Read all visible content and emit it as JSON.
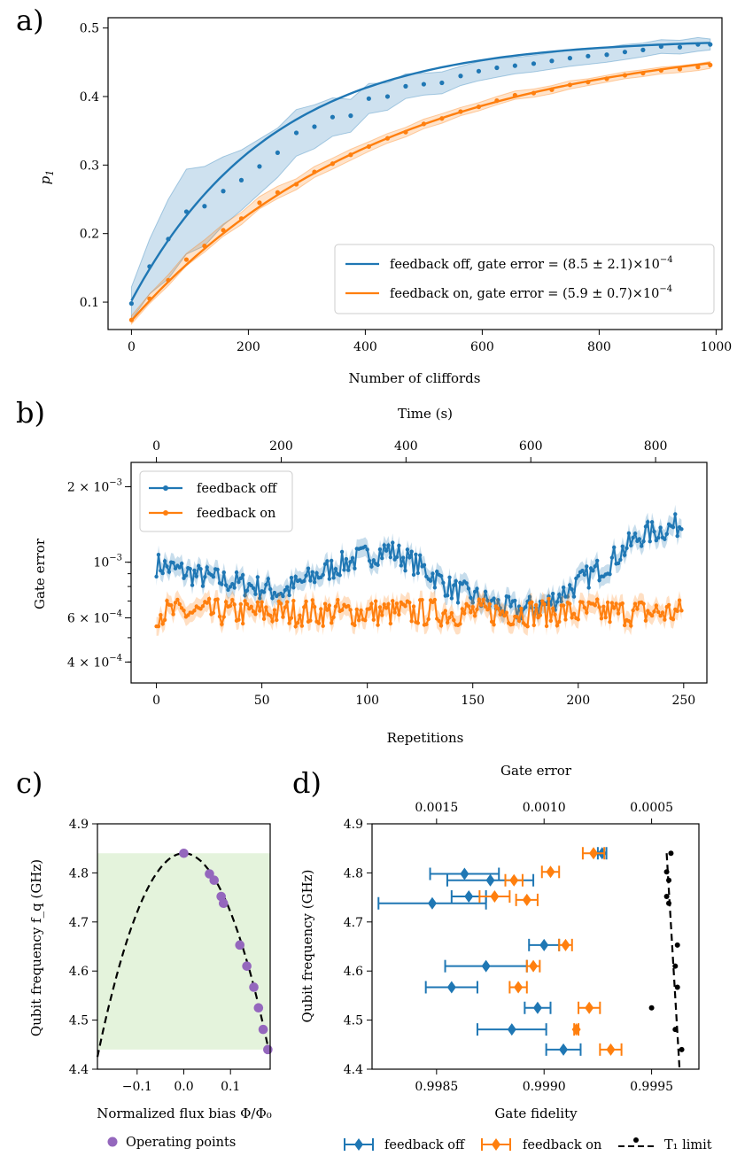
{
  "colors": {
    "blue": "#1f77b4",
    "orange": "#ff7f0e",
    "green_band": "#e4f3dc",
    "purple": "#9467bd",
    "black": "#000000"
  },
  "chart_data": [
    {
      "id": "a",
      "panel_label": "a)",
      "type": "line",
      "xlabel": "Number of cliffords",
      "ylabel": "p_1",
      "xlim": [
        -40,
        1010
      ],
      "ylim": [
        0.06,
        0.515
      ],
      "xticks": [
        0,
        200,
        400,
        600,
        800,
        1000
      ],
      "yticks": [
        0.1,
        0.2,
        0.3,
        0.4,
        0.5
      ],
      "legend_position": "lower-right",
      "series": [
        {
          "name": "feedback off, gate error = (8.5 ± 2.1)×10^{-4}",
          "legend_label": "feedback off, gate error = (8.5 ± 2.1)×10",
          "legend_exp": "−4",
          "color": "blue",
          "x": [
            0,
            31,
            63,
            94,
            125,
            157,
            188,
            219,
            250,
            282,
            313,
            344,
            375,
            406,
            438,
            469,
            500,
            531,
            563,
            594,
            625,
            656,
            688,
            719,
            750,
            781,
            813,
            844,
            875,
            906,
            938,
            969,
            990
          ],
          "y": [
            0.098,
            0.152,
            0.192,
            0.232,
            0.24,
            0.262,
            0.278,
            0.298,
            0.318,
            0.347,
            0.356,
            0.37,
            0.372,
            0.397,
            0.4,
            0.415,
            0.418,
            0.42,
            0.43,
            0.437,
            0.442,
            0.445,
            0.448,
            0.452,
            0.456,
            0.459,
            0.461,
            0.465,
            0.468,
            0.473,
            0.472,
            0.476,
            0.476
          ],
          "fit": {
            "p0": 0.102,
            "pinf": 0.4845,
            "decay": 0.99584
          },
          "band": [
            0.024,
            0.04,
            0.058,
            0.062,
            0.058,
            0.05,
            0.044,
            0.04,
            0.036,
            0.034,
            0.032,
            0.028,
            0.024,
            0.022,
            0.02,
            0.018,
            0.016,
            0.016,
            0.014,
            0.014,
            0.014,
            0.012,
            0.012,
            0.012,
            0.012,
            0.012,
            0.011,
            0.011,
            0.01,
            0.01,
            0.01,
            0.01,
            0.008
          ]
        },
        {
          "name": "feedback on, gate error = (5.9 ± 0.7)×10^{-4}",
          "legend_label": "feedback on, gate error = (5.9 ± 0.7)×10",
          "legend_exp": "−4",
          "color": "orange",
          "x": [
            0,
            31,
            63,
            94,
            125,
            157,
            188,
            219,
            250,
            282,
            313,
            344,
            375,
            406,
            438,
            469,
            500,
            531,
            563,
            594,
            625,
            656,
            688,
            719,
            750,
            781,
            813,
            844,
            875,
            906,
            938,
            969,
            990
          ],
          "y": [
            0.074,
            0.105,
            0.132,
            0.162,
            0.182,
            0.205,
            0.222,
            0.245,
            0.26,
            0.272,
            0.29,
            0.302,
            0.315,
            0.327,
            0.339,
            0.348,
            0.36,
            0.368,
            0.378,
            0.385,
            0.394,
            0.402,
            0.405,
            0.41,
            0.417,
            0.421,
            0.426,
            0.431,
            0.434,
            0.438,
            0.44,
            0.443,
            0.446
          ],
          "fit": {
            "p0": 0.073,
            "pinf": 0.491,
            "decay": 0.99769
          },
          "band": [
            0.006,
            0.007,
            0.008,
            0.009,
            0.009,
            0.009,
            0.009,
            0.009,
            0.009,
            0.008,
            0.008,
            0.008,
            0.008,
            0.007,
            0.007,
            0.007,
            0.007,
            0.007,
            0.006,
            0.006,
            0.006,
            0.006,
            0.006,
            0.006,
            0.006,
            0.005,
            0.005,
            0.005,
            0.005,
            0.005,
            0.005,
            0.005,
            0.005
          ]
        }
      ]
    },
    {
      "id": "b",
      "panel_label": "b)",
      "type": "line",
      "xlabel": "Repetitions",
      "ylabel": "Gate error",
      "top_xlabel": "Time (s)",
      "xlim": [
        -12,
        261
      ],
      "yscale": "log",
      "ylim": [
        0.00033,
        0.0025
      ],
      "xticks": [
        0,
        50,
        100,
        150,
        200,
        250
      ],
      "top_xticks": [
        0,
        200,
        400,
        600,
        800
      ],
      "time_per_repetition_s": 3.38,
      "yticks_labeled": [
        {
          "value": 0.0004,
          "m": "4",
          "e": "−4"
        },
        {
          "value": 0.0006,
          "m": "6",
          "e": "−4"
        },
        {
          "value": 0.001,
          "m": "",
          "e": "−3"
        },
        {
          "value": 0.002,
          "m": "2",
          "e": "−3"
        }
      ],
      "legend_position": "upper-left",
      "series": [
        {
          "name": "feedback off",
          "color": "blue",
          "points": 250,
          "trend_x": [
            0,
            20,
            40,
            60,
            75,
            90,
            110,
            125,
            140,
            160,
            170,
            185,
            200,
            215,
            230,
            250
          ],
          "trend_y": [
            0.00098,
            0.00088,
            0.00082,
            0.00076,
            0.00088,
            0.001,
            0.00112,
            0.00096,
            0.00078,
            0.00068,
            0.00064,
            0.00068,
            0.00082,
            0.001,
            0.00128,
            0.00142
          ],
          "jitter": 0.07
        },
        {
          "name": "feedback on",
          "color": "orange",
          "points": 250,
          "trend_x": [
            0,
            250
          ],
          "trend_y": [
            0.00063,
            0.00063
          ],
          "jitter": 0.08
        }
      ]
    },
    {
      "id": "c",
      "panel_label": "c)",
      "type": "line",
      "xlabel": "Normalized flux bias Φ/Φ₀",
      "ylabel": "Qubit frequency f_q (GHz)",
      "xlim": [
        -0.185,
        0.185
      ],
      "ylim": [
        4.4,
        4.9
      ],
      "xticks": [
        -0.1,
        0.0,
        0.1
      ],
      "xtick_labels": [
        "−0.1",
        "0.0",
        "0.1"
      ],
      "yticks": [
        4.4,
        4.5,
        4.6,
        4.7,
        4.8,
        4.9
      ],
      "band": {
        "x_min": -0.185,
        "x_max": 0.185,
        "y_min": 4.44,
        "y_max": 4.84
      },
      "curve": {
        "fmax": 4.84,
        "period_phi": 1.0,
        "style": "dashed",
        "color": "black"
      },
      "operating_points": {
        "name": "Operating points",
        "color": "purple",
        "x": [
          0.0,
          0.055,
          0.065,
          0.08,
          0.085,
          0.12,
          0.135,
          0.15,
          0.16,
          0.17,
          0.18
        ],
        "y": [
          4.84,
          4.798,
          4.785,
          4.752,
          4.738,
          4.653,
          4.61,
          4.567,
          4.525,
          4.481,
          4.44
        ]
      }
    },
    {
      "id": "d",
      "panel_label": "d)",
      "type": "scatter",
      "xlabel": "Gate fidelity",
      "ylabel": "Qubit frequency (GHz)",
      "top_xlabel": "Gate error",
      "xlim": [
        0.9982,
        0.99972
      ],
      "ylim": [
        4.4,
        4.9
      ],
      "xticks": [
        0.9985,
        0.999,
        0.9995
      ],
      "xtick_labels": [
        "0.9985",
        "0.9990",
        "0.9995"
      ],
      "top_xticks": [
        0.0015,
        0.001,
        0.0005
      ],
      "top_xtick_labels": [
        "0.0015",
        "0.0010",
        "0.0005"
      ],
      "yticks": [
        4.4,
        4.5,
        4.6,
        4.7,
        4.8,
        4.9
      ],
      "series": [
        {
          "name": "feedback off",
          "color": "blue",
          "marker": "diamond",
          "y": [
            4.84,
            4.798,
            4.785,
            4.752,
            4.738,
            4.653,
            4.61,
            4.567,
            4.525,
            4.481,
            4.44
          ],
          "x": [
            0.99927,
            0.99863,
            0.99875,
            0.99865,
            0.99848,
            0.999,
            0.99873,
            0.99857,
            0.99897,
            0.99885,
            0.99909
          ],
          "err": [
            2e-05,
            0.00016,
            0.0002,
            8e-05,
            0.00025,
            7e-05,
            0.00019,
            0.00012,
            6e-05,
            0.00016,
            8e-05
          ]
        },
        {
          "name": "feedback on",
          "color": "orange",
          "marker": "diamond",
          "y": [
            4.84,
            4.802,
            4.785,
            4.752,
            4.745,
            4.653,
            4.61,
            4.567,
            4.525,
            4.481,
            4.44
          ],
          "x": [
            0.99923,
            0.99903,
            0.99886,
            0.99877,
            0.99892,
            0.9991,
            0.99895,
            0.99888,
            0.99921,
            0.99915,
            0.99931
          ],
          "err": [
            5e-05,
            4e-05,
            4e-05,
            7e-05,
            5e-05,
            3e-05,
            3e-05,
            4e-05,
            5e-05,
            1e-05,
            5e-05
          ]
        },
        {
          "name": "T_1 limit",
          "color": "black",
          "marker": "dot",
          "style": "dashed",
          "y": [
            4.84,
            4.802,
            4.785,
            4.752,
            4.738,
            4.653,
            4.61,
            4.567,
            4.525,
            4.481,
            4.44
          ],
          "x": [
            0.99959,
            0.99957,
            0.99958,
            0.99957,
            0.99958,
            0.99962,
            0.99961,
            0.99962,
            0.9995,
            0.99961,
            0.99964
          ],
          "line_x": [
            0.99957,
            0.99963
          ]
        }
      ]
    }
  ],
  "bottom_legend": {
    "operating_points": "Operating points",
    "feedback_off": "feedback off",
    "feedback_on": "feedback on",
    "t1_limit": "T₁ limit"
  }
}
